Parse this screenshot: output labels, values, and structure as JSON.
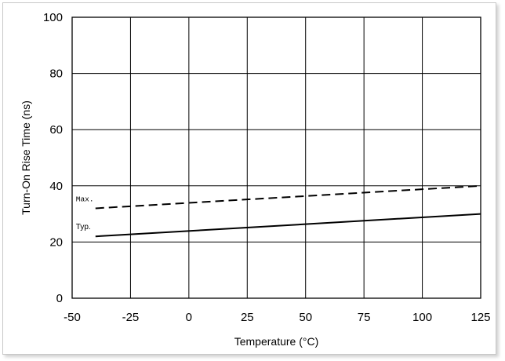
{
  "chart_data": {
    "type": "line",
    "title": "",
    "xlabel": "Temperature (°C)",
    "ylabel": "Turn-On Rise Time (ns)",
    "xlim": [
      -50,
      125
    ],
    "ylim": [
      0,
      100
    ],
    "xticks": [
      -50,
      -25,
      0,
      25,
      50,
      75,
      100,
      125
    ],
    "yticks": [
      0,
      20,
      40,
      60,
      80,
      100
    ],
    "grid": true,
    "series": [
      {
        "name": "Max.",
        "style": "dashed",
        "color": "#000000",
        "x": [
          -40,
          125
        ],
        "y": [
          32,
          40
        ]
      },
      {
        "name": "Typ.",
        "style": "solid",
        "color": "#000000",
        "x": [
          -40,
          125
        ],
        "y": [
          22,
          30
        ]
      }
    ]
  }
}
